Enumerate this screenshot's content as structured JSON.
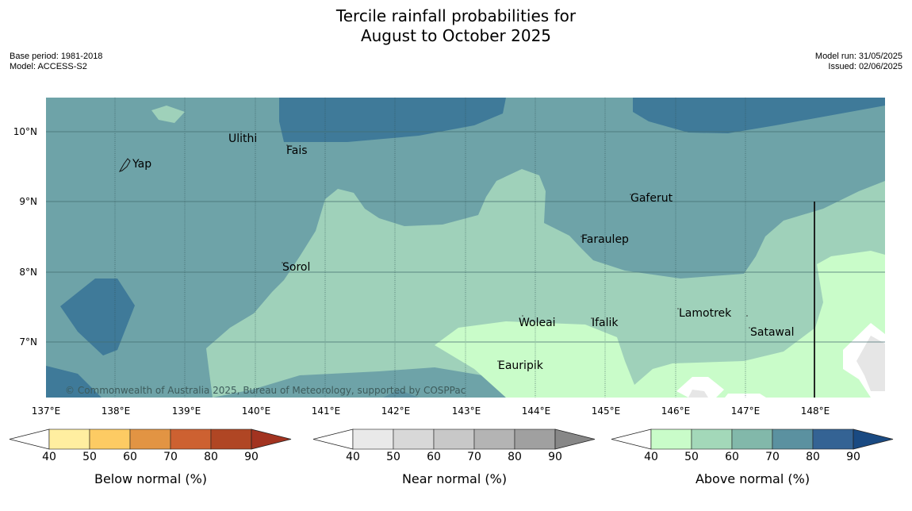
{
  "title": {
    "line1": "Tercile rainfall probabilities for",
    "line2": "August to October 2025"
  },
  "meta_left": {
    "base_period": "Base period: 1981-2018",
    "model": "Model: ACCESS-S2"
  },
  "meta_right": {
    "model_run": "Model run: 31/05/2025",
    "issued": "Issued: 02/06/2025"
  },
  "map": {
    "lat_labels": [
      "10°N",
      "9°N",
      "8°N",
      "7°N"
    ],
    "lon_labels": [
      "137°E",
      "138°E",
      "139°E",
      "140°E",
      "141°E",
      "142°E",
      "143°E",
      "144°E",
      "145°E",
      "146°E",
      "147°E",
      "148°E"
    ],
    "places": [
      "Ulithi",
      "Yap",
      "Fais",
      "Sorol",
      "Gaferut",
      "Faraulep",
      "Woleai",
      "Ifalik",
      "Lamotrek",
      "Satawal",
      "Eauripik"
    ],
    "copyright": "© Commonwealth of Australia 2025, Bureau of Meteorology, supported by COSPPac",
    "colors": {
      "above_50_60": "#9fd1ba",
      "above_60_70": "#6ea3a8",
      "above_70_80": "#3f7a99",
      "above_40_50": "#c9fcc9",
      "near_normal": "#e6e6e6"
    }
  },
  "legends": [
    {
      "title": "Below normal (%)",
      "ticks": [
        "40",
        "50",
        "60",
        "70",
        "80",
        "90"
      ],
      "colors": [
        "#ffeea0",
        "#fdcb63",
        "#e29443",
        "#cd6131",
        "#b04624",
        "#a23320"
      ]
    },
    {
      "title": "Near normal (%)",
      "ticks": [
        "40",
        "50",
        "60",
        "70",
        "80",
        "90"
      ],
      "colors": [
        "#e9e9e9",
        "#d8d8d8",
        "#c8c8c8",
        "#b4b4b4",
        "#a0a0a0",
        "#878787"
      ]
    },
    {
      "title": "Above normal (%)",
      "ticks": [
        "40",
        "50",
        "60",
        "70",
        "80",
        "90"
      ],
      "colors": [
        "#c9fcc9",
        "#a3d8b9",
        "#82b8aa",
        "#5b91a0",
        "#346394",
        "#1a4a82"
      ]
    }
  ]
}
